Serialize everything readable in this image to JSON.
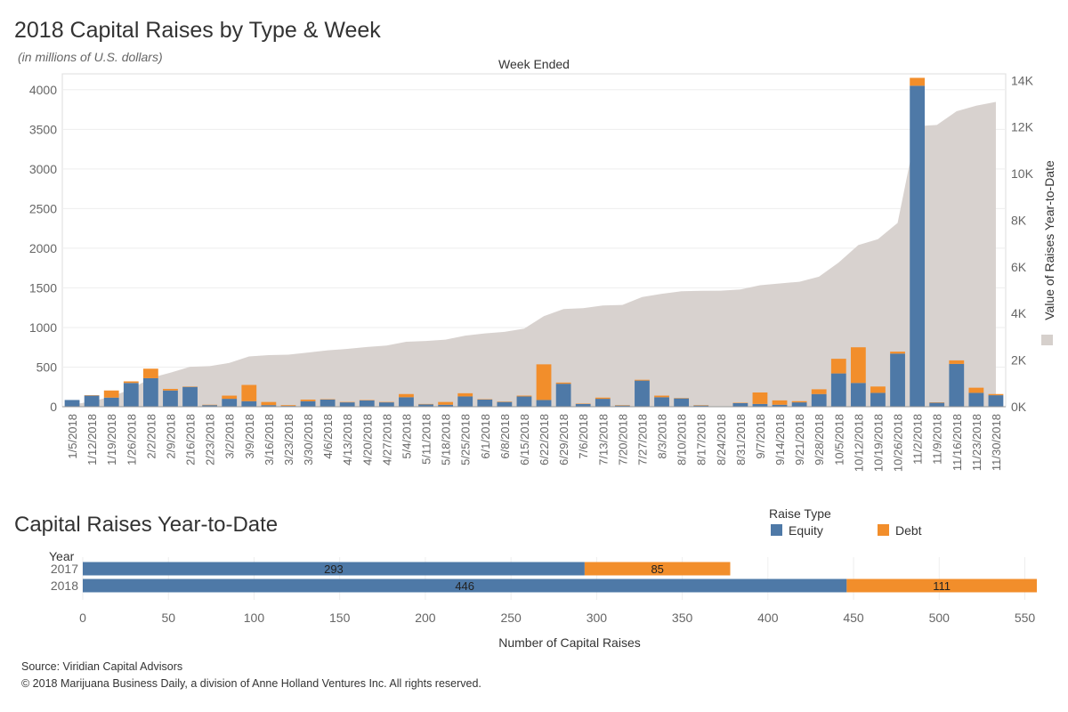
{
  "title": "2018 Capital Raises by Type & Week",
  "subtitle": "(in millions of U.S. dollars)",
  "title2": "Capital Raises Year-to-Date",
  "footer": {
    "source": "Source: Viridian Capital Advisors",
    "copyright": "© 2018 Marijuana Business Daily, a division of Anne Holland Ventures Inc. All rights reserved."
  },
  "colors": {
    "equity": "#4e79a7",
    "debt": "#f28e2b",
    "cumulative": "#d6d0cc"
  },
  "chart_data": [
    {
      "type": "bar",
      "stacked": true,
      "xlabel": "Week Ended",
      "ylabel": "",
      "ylabel_right": "Value of Raises Year-to-Date",
      "ylim": [
        0,
        4200
      ],
      "yticks": [
        0,
        500,
        1000,
        1500,
        2000,
        2500,
        3000,
        3500,
        4000
      ],
      "ylim_right": [
        0,
        14280
      ],
      "yticks_right": [
        0,
        2000,
        4000,
        6000,
        8000,
        10000,
        12000,
        14000
      ],
      "yticklabels_right": [
        "0K",
        "2K",
        "4K",
        "6K",
        "8K",
        "10K",
        "12K",
        "14K"
      ],
      "grid": true,
      "categories": [
        "1/5/2018",
        "1/12/2018",
        "1/19/2018",
        "1/26/2018",
        "2/2/2018",
        "2/9/2018",
        "2/16/2018",
        "2/23/2018",
        "3/2/2018",
        "3/9/2018",
        "3/16/2018",
        "3/23/2018",
        "3/30/2018",
        "4/6/2018",
        "4/13/2018",
        "4/20/2018",
        "4/27/2018",
        "5/4/2018",
        "5/11/2018",
        "5/18/2018",
        "5/25/2018",
        "6/1/2018",
        "6/8/2018",
        "6/15/2018",
        "6/22/2018",
        "6/29/2018",
        "7/6/2018",
        "7/13/2018",
        "7/20/2018",
        "7/27/2018",
        "8/3/2018",
        "8/10/2018",
        "8/17/2018",
        "8/24/2018",
        "8/31/2018",
        "9/7/2018",
        "9/14/2018",
        "9/21/2018",
        "9/28/2018",
        "10/5/2018",
        "10/12/2018",
        "10/19/2018",
        "10/26/2018",
        "11/2/2018",
        "11/9/2018",
        "11/16/2018",
        "11/23/2018",
        "11/30/2018"
      ],
      "tick_labels_shown": [
        "1/5/2018",
        "1/12/2018",
        "1/19/2018",
        "1/26/2018",
        "2/2/2018",
        "2/9/2018",
        "2/16/2018",
        "2/23/2018",
        "3/2/2018",
        "3/9/2018",
        "3/16/2018",
        "3/23/2018",
        "3/30/2018",
        "4/6/2018",
        "4/13/2018",
        "4/20/2018",
        "4/27/2018",
        "5/4/2018",
        "5/11/2018",
        "5/18/2018",
        "5/25/2018",
        "6/1/2018",
        "6/8/2018",
        "6/15/2018",
        "6/22/2018",
        "6/29/2018",
        "7/6/2018",
        "7/13/2018",
        "7/20/2018",
        "7/27/2018",
        "8/3/2018",
        "8/10/2018",
        "8/17/2018",
        "8/24/2018",
        "8/31/2018",
        "9/7/2018",
        "9/14/2018",
        "9/21/2018",
        "9/28/2018",
        "10/5/2018",
        "10/12/2018",
        "10/19/2018",
        "10/26/2018",
        "11/2/2018",
        "11/9/2018",
        "11/16/2018",
        "11/23/2018",
        "11/30/2018"
      ],
      "series": [
        {
          "name": "Equity",
          "values": [
            85,
            140,
            115,
            300,
            360,
            205,
            250,
            20,
            100,
            70,
            20,
            10,
            70,
            90,
            55,
            80,
            55,
            120,
            30,
            25,
            130,
            90,
            60,
            130,
            85,
            290,
            35,
            100,
            15,
            330,
            120,
            105,
            15,
            0,
            45,
            35,
            25,
            55,
            160,
            420,
            300,
            175,
            670,
            4050,
            50,
            540,
            175,
            145
          ]
        },
        {
          "name": "Debt",
          "values": [
            0,
            5,
            90,
            20,
            120,
            20,
            5,
            5,
            40,
            205,
            40,
            10,
            20,
            5,
            5,
            5,
            5,
            40,
            5,
            35,
            40,
            5,
            5,
            10,
            450,
            15,
            5,
            15,
            5,
            10,
            20,
            5,
            5,
            5,
            5,
            145,
            55,
            15,
            60,
            185,
            450,
            80,
            25,
            100,
            5,
            45,
            65,
            15
          ]
        },
        {
          "name": "Value of Raises Year-to-Date",
          "axis": "right",
          "chart_type": "area",
          "values": [
            85,
            230,
            435,
            755,
            1235,
            1460,
            1715,
            1740,
            1880,
            2155,
            2215,
            2235,
            2325,
            2420,
            2480,
            2565,
            2625,
            2785,
            2820,
            2880,
            3050,
            3145,
            3210,
            3350,
            3885,
            4190,
            4230,
            4345,
            4365,
            4705,
            4845,
            4955,
            4975,
            4980,
            5030,
            5210,
            5290,
            5360,
            5580,
            6185,
            6935,
            7190,
            7885,
            12035,
            12090,
            12675,
            12915,
            13075
          ]
        }
      ]
    },
    {
      "type": "bar",
      "orientation": "horizontal",
      "stacked": true,
      "ylabel": "Year",
      "xlabel": "Number of Capital Raises",
      "legend_title": "Raise Type",
      "legend_position": "top-right",
      "xlim": [
        0,
        570
      ],
      "xticks": [
        0,
        50,
        100,
        150,
        200,
        250,
        300,
        350,
        400,
        450,
        500,
        550
      ],
      "grid": true,
      "categories": [
        "2017",
        "2018"
      ],
      "series": [
        {
          "name": "Equity",
          "values": [
            293,
            446
          ]
        },
        {
          "name": "Debt",
          "values": [
            85,
            111
          ]
        }
      ]
    }
  ]
}
